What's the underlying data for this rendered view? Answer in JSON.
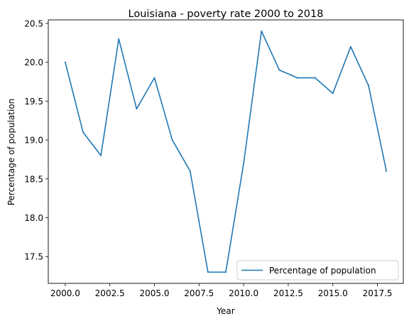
{
  "chart_data": {
    "type": "line",
    "title": "Louisiana - poverty rate 2000 to 2018",
    "xlabel": "Year",
    "ylabel": "Percentage of population",
    "xlim": [
      1999.05,
      2018.95
    ],
    "ylim": [
      17.155,
      20.545
    ],
    "x_ticks": [
      "2000.0",
      "2002.5",
      "2005.0",
      "2007.5",
      "2010.0",
      "2012.5",
      "2015.0",
      "2017.5"
    ],
    "y_ticks": [
      "17.5",
      "18.0",
      "18.5",
      "19.0",
      "19.5",
      "20.0",
      "20.5"
    ],
    "legend_position": "lower-right",
    "grid": false,
    "series": [
      {
        "name": "Percentage of population",
        "color": "#1f77b4",
        "x": [
          2000,
          2001,
          2002,
          2003,
          2004,
          2005,
          2006,
          2007,
          2008,
          2009,
          2010,
          2011,
          2012,
          2013,
          2014,
          2015,
          2016,
          2017,
          2018
        ],
        "y": [
          20.0,
          19.1,
          18.8,
          20.3,
          19.4,
          19.8,
          19.0,
          18.6,
          17.3,
          17.3,
          18.7,
          20.4,
          19.9,
          19.8,
          19.8,
          19.6,
          20.2,
          19.7,
          18.6
        ]
      }
    ]
  }
}
